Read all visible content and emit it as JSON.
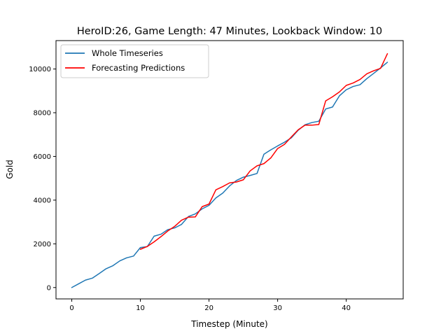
{
  "chart_data": {
    "type": "line",
    "title": "HeroID:26, Game Length: 47 Minutes, Lookback Window: 10",
    "xlabel": "Timestep (Minute)",
    "ylabel": "Gold",
    "xlim": [
      -2.3,
      48.3
    ],
    "ylim": [
      -520,
      11300
    ],
    "xticks": [
      0,
      10,
      20,
      30,
      40
    ],
    "yticks": [
      0,
      2000,
      4000,
      6000,
      8000,
      10000
    ],
    "grid": false,
    "legend_position": "top-left",
    "series": [
      {
        "name": "Whole Timeseries",
        "color": "#1f77b4",
        "x": [
          0,
          1,
          2,
          3,
          4,
          5,
          6,
          7,
          8,
          9,
          10,
          11,
          12,
          13,
          14,
          15,
          16,
          17,
          18,
          19,
          20,
          21,
          22,
          23,
          24,
          25,
          26,
          27,
          28,
          29,
          30,
          31,
          32,
          33,
          34,
          35,
          36,
          37,
          38,
          39,
          40,
          41,
          42,
          43,
          44,
          45,
          46
        ],
        "y": [
          0,
          170,
          340,
          430,
          640,
          860,
          1000,
          1220,
          1360,
          1440,
          1830,
          1870,
          2350,
          2440,
          2650,
          2730,
          2890,
          3250,
          3370,
          3600,
          3760,
          4100,
          4320,
          4650,
          4900,
          5050,
          5130,
          5220,
          6100,
          6300,
          6480,
          6650,
          6850,
          7200,
          7450,
          7550,
          7610,
          8170,
          8260,
          8770,
          9050,
          9200,
          9280,
          9560,
          9800,
          10050,
          10310
        ]
      },
      {
        "name": "Forecasting Predictions",
        "color": "#ff0000",
        "x": [
          10,
          11,
          12,
          13,
          14,
          15,
          16,
          17,
          18,
          19,
          20,
          21,
          22,
          23,
          24,
          25,
          26,
          27,
          28,
          29,
          30,
          31,
          32,
          33,
          34,
          35,
          36,
          37,
          38,
          39,
          40,
          41,
          42,
          43,
          44,
          45,
          46
        ],
        "y": [
          1750,
          1880,
          2090,
          2330,
          2590,
          2800,
          3080,
          3220,
          3230,
          3700,
          3820,
          4470,
          4620,
          4790,
          4830,
          4930,
          5340,
          5570,
          5670,
          5930,
          6360,
          6550,
          6890,
          7220,
          7430,
          7430,
          7460,
          8540,
          8730,
          8950,
          9250,
          9360,
          9520,
          9780,
          9920,
          10030,
          10700
        ]
      }
    ]
  }
}
